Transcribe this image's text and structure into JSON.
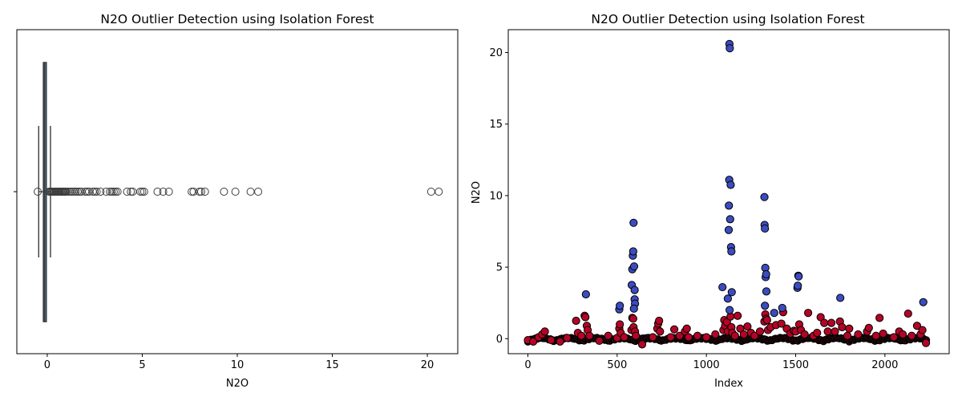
{
  "chart_data": [
    {
      "type": "box",
      "title": "N2O Outlier Detection using Isolation Forest",
      "xlabel": "N2O",
      "ylabel": "",
      "xlim": [
        -1.6,
        21.6
      ],
      "xticks": [
        0,
        5,
        10,
        15,
        20
      ],
      "box": {
        "q1": -0.2,
        "median": -0.15,
        "q3": -0.05,
        "whisker_low": -0.45,
        "whisker_high": 0.17
      },
      "outliers": [
        -0.5,
        0.1,
        0.15,
        0.2,
        0.25,
        0.3,
        0.35,
        0.4,
        0.45,
        0.5,
        0.55,
        0.6,
        0.65,
        0.7,
        0.75,
        0.8,
        0.85,
        0.9,
        0.95,
        1.0,
        1.1,
        1.2,
        1.3,
        1.4,
        1.5,
        1.6,
        1.7,
        1.8,
        2.0,
        2.1,
        2.2,
        2.4,
        2.5,
        2.6,
        2.8,
        3.1,
        3.3,
        3.4,
        3.5,
        3.6,
        3.7,
        4.2,
        4.4,
        4.5,
        4.9,
        5.0,
        5.1,
        5.8,
        6.1,
        6.4,
        7.6,
        7.7,
        8.0,
        8.1,
        8.3,
        9.3,
        9.9,
        10.7,
        11.1,
        20.2,
        20.6
      ]
    },
    {
      "type": "scatter",
      "title": "N2O Outlier Detection using Isolation Forest",
      "xlabel": "Index",
      "ylabel": "N2O",
      "xlim": [
        -110,
        2360
      ],
      "ylim": [
        -1.05,
        21.6
      ],
      "xticks": [
        0,
        500,
        1000,
        1500,
        2000
      ],
      "yticks": [
        0,
        5,
        10,
        15,
        20
      ],
      "colors": {
        "inlier": "#b40426",
        "outlier": "#3b4cc0"
      },
      "outlier_points": [
        [
          325,
          3.1
        ],
        [
          512,
          2.05
        ],
        [
          515,
          2.3
        ],
        [
          582,
          3.75
        ],
        [
          585,
          4.85
        ],
        [
          588,
          5.8
        ],
        [
          590,
          6.1
        ],
        [
          592,
          8.1
        ],
        [
          595,
          5.05
        ],
        [
          598,
          3.4
        ],
        [
          598,
          2.75
        ],
        [
          600,
          2.45
        ],
        [
          594,
          2.1
        ],
        [
          1090,
          3.6
        ],
        [
          1120,
          2.8
        ],
        [
          1125,
          7.6
        ],
        [
          1126,
          9.3
        ],
        [
          1128,
          11.1
        ],
        [
          1129,
          20.6
        ],
        [
          1131,
          20.3
        ],
        [
          1133,
          8.35
        ],
        [
          1136,
          10.75
        ],
        [
          1138,
          6.4
        ],
        [
          1140,
          6.1
        ],
        [
          1142,
          3.25
        ],
        [
          1130,
          2.0
        ],
        [
          1325,
          9.9
        ],
        [
          1326,
          7.95
        ],
        [
          1328,
          7.7
        ],
        [
          1330,
          4.95
        ],
        [
          1332,
          4.3
        ],
        [
          1335,
          4.5
        ],
        [
          1336,
          3.3
        ],
        [
          1328,
          2.3
        ],
        [
          1380,
          1.8
        ],
        [
          1425,
          2.15
        ],
        [
          1510,
          3.55
        ],
        [
          1512,
          3.7
        ],
        [
          1515,
          4.4
        ],
        [
          1517,
          4.35
        ],
        [
          1750,
          2.85
        ],
        [
          2215,
          2.55
        ]
      ],
      "inlier_points": [
        [
          0,
          -0.1
        ],
        [
          30,
          -0.2
        ],
        [
          60,
          0.1
        ],
        [
          80,
          0.3
        ],
        [
          95,
          0.5
        ],
        [
          130,
          -0.1
        ],
        [
          180,
          -0.2
        ],
        [
          220,
          0.05
        ],
        [
          270,
          1.25
        ],
        [
          280,
          0.4
        ],
        [
          300,
          0.2
        ],
        [
          318,
          1.6
        ],
        [
          322,
          1.5
        ],
        [
          330,
          0.9
        ],
        [
          335,
          0.6
        ],
        [
          345,
          0.2
        ],
        [
          400,
          -0.15
        ],
        [
          450,
          0.2
        ],
        [
          500,
          0.05
        ],
        [
          512,
          0.7
        ],
        [
          515,
          1.0
        ],
        [
          520,
          0.4
        ],
        [
          540,
          0.1
        ],
        [
          580,
          0.6
        ],
        [
          585,
          1.45
        ],
        [
          590,
          1.4
        ],
        [
          592,
          0.8
        ],
        [
          600,
          0.5
        ],
        [
          605,
          0.2
        ],
        [
          640,
          -0.4
        ],
        [
          700,
          0.1
        ],
        [
          725,
          0.7
        ],
        [
          730,
          1.05
        ],
        [
          735,
          1.25
        ],
        [
          740,
          0.5
        ],
        [
          800,
          0.1
        ],
        [
          820,
          0.65
        ],
        [
          850,
          0.2
        ],
        [
          880,
          0.5
        ],
        [
          890,
          0.7
        ],
        [
          900,
          0.1
        ],
        [
          950,
          0.2
        ],
        [
          1000,
          0.1
        ],
        [
          1050,
          0.3
        ],
        [
          1095,
          0.6
        ],
        [
          1100,
          1.3
        ],
        [
          1105,
          0.9
        ],
        [
          1115,
          1.15
        ],
        [
          1120,
          0.5
        ],
        [
          1135,
          1.55
        ],
        [
          1140,
          0.8
        ],
        [
          1145,
          0.4
        ],
        [
          1160,
          0.2
        ],
        [
          1175,
          1.6
        ],
        [
          1190,
          0.7
        ],
        [
          1210,
          0.3
        ],
        [
          1230,
          0.85
        ],
        [
          1250,
          0.4
        ],
        [
          1270,
          0.2
        ],
        [
          1300,
          0.5
        ],
        [
          1325,
          1.2
        ],
        [
          1330,
          1.7
        ],
        [
          1335,
          1.4
        ],
        [
          1340,
          1.3
        ],
        [
          1345,
          0.6
        ],
        [
          1360,
          0.8
        ],
        [
          1390,
          0.95
        ],
        [
          1420,
          1.05
        ],
        [
          1430,
          1.85
        ],
        [
          1450,
          0.7
        ],
        [
          1470,
          0.35
        ],
        [
          1490,
          0.55
        ],
        [
          1500,
          0.5
        ],
        [
          1520,
          1.0
        ],
        [
          1530,
          0.6
        ],
        [
          1550,
          0.3
        ],
        [
          1570,
          1.8
        ],
        [
          1600,
          0.2
        ],
        [
          1620,
          0.4
        ],
        [
          1640,
          1.5
        ],
        [
          1660,
          1.1
        ],
        [
          1680,
          0.5
        ],
        [
          1700,
          1.1
        ],
        [
          1720,
          0.5
        ],
        [
          1748,
          1.2
        ],
        [
          1760,
          0.8
        ],
        [
          1790,
          0.2
        ],
        [
          1800,
          0.7
        ],
        [
          1850,
          0.3
        ],
        [
          1900,
          0.5
        ],
        [
          1910,
          0.75
        ],
        [
          1950,
          0.2
        ],
        [
          1970,
          1.45
        ],
        [
          1990,
          0.35
        ],
        [
          2050,
          0.1
        ],
        [
          2080,
          0.5
        ],
        [
          2100,
          0.3
        ],
        [
          2130,
          1.75
        ],
        [
          2150,
          0.2
        ],
        [
          2180,
          0.9
        ],
        [
          2200,
          0.3
        ],
        [
          2210,
          0.6
        ],
        [
          2230,
          -0.3
        ]
      ]
    }
  ]
}
